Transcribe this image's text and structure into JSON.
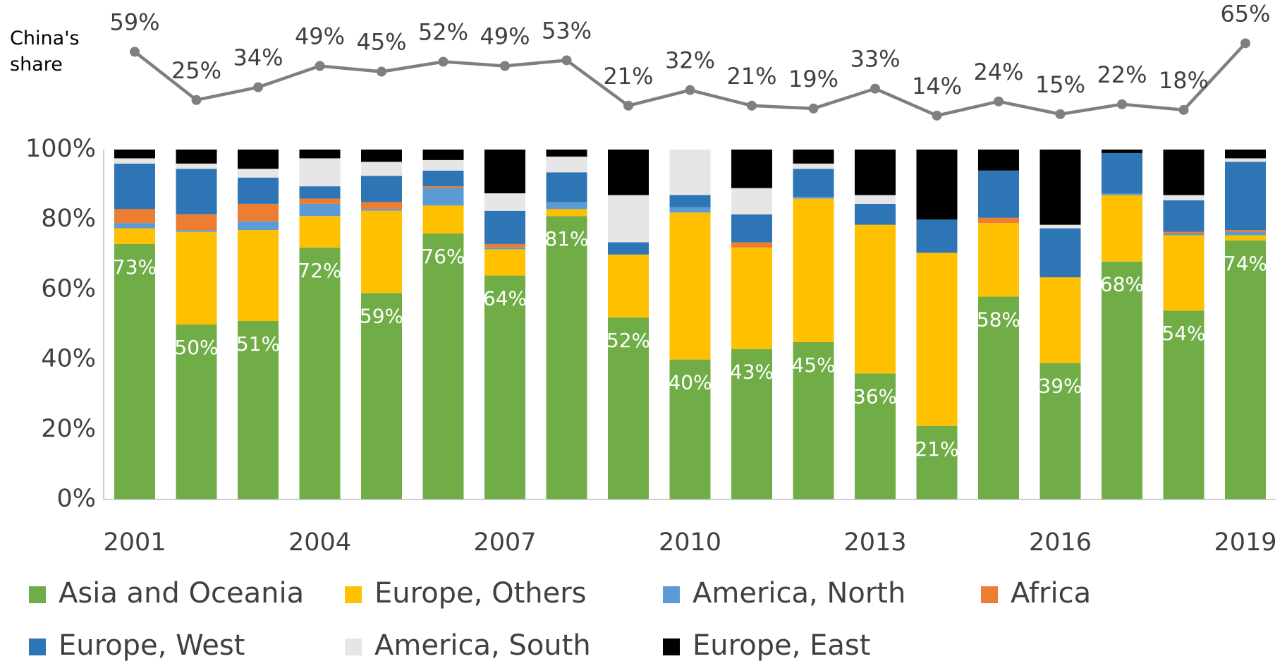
{
  "chart_data": {
    "type": "bar",
    "stacked": true,
    "annotation": "China's share",
    "categories": [
      "2001",
      null,
      null,
      "2004",
      null,
      null,
      "2007",
      null,
      null,
      "2010",
      null,
      null,
      "2013",
      null,
      null,
      "2016",
      null,
      null,
      "2019"
    ],
    "ylim": [
      0,
      100
    ],
    "yticks": [
      {
        "value": 0,
        "label": "0%"
      },
      {
        "value": 20,
        "label": "20%"
      },
      {
        "value": 40,
        "label": "40%"
      },
      {
        "value": 60,
        "label": "60%"
      },
      {
        "value": 80,
        "label": "80%"
      },
      {
        "value": 100,
        "label": "100%"
      }
    ],
    "y2lim": [
      0,
      100
    ],
    "grid": false,
    "legend": "bottom",
    "series": [
      {
        "name": "Asia and Oceania",
        "color": "#70ad47",
        "values": [
          73,
          50,
          51,
          72,
          59,
          76,
          64,
          81,
          52,
          40,
          43,
          45,
          36,
          21,
          58,
          39,
          68,
          54,
          74
        ],
        "value_labels": [
          "73%",
          "50%",
          "51%",
          "72%",
          "59%",
          "76%",
          "64%",
          "81%",
          "52%",
          "40%",
          "43%",
          "45%",
          "36%",
          "21%",
          "58%",
          "39%",
          "68%",
          "54%",
          "74%"
        ]
      },
      {
        "name": "Europe, Others",
        "color": "#ffc000",
        "values": [
          4.5,
          26.5,
          26,
          9,
          23.5,
          8,
          7.5,
          2,
          18,
          42,
          29,
          41,
          42.5,
          49.5,
          21,
          24.5,
          19,
          21.5,
          1.5
        ]
      },
      {
        "name": "America, North",
        "color": "#5b9bd5",
        "values": [
          1.5,
          0.5,
          2.5,
          3.5,
          0.5,
          5,
          0.5,
          2,
          0,
          1.5,
          0,
          0.5,
          0,
          0,
          0,
          0,
          0.5,
          0.5,
          1
        ]
      },
      {
        "name": "Africa",
        "color": "#ed7d31",
        "values": [
          4,
          4.5,
          5,
          1.5,
          2,
          0.5,
          1,
          0,
          0,
          0,
          1.5,
          0,
          0,
          0,
          1.5,
          0,
          0,
          0.5,
          0.5
        ]
      },
      {
        "name": "Europe, West",
        "color": "#2e75b6",
        "values": [
          13,
          13,
          7.5,
          3.5,
          7.5,
          4.5,
          9.5,
          8.5,
          3.5,
          3.5,
          8,
          8,
          6,
          9.5,
          13.5,
          14,
          11.5,
          9,
          19.5
        ]
      },
      {
        "name": "America, South",
        "color": "#e7e6e6",
        "values": [
          1.5,
          1.5,
          2.5,
          8,
          4,
          3,
          5,
          4.5,
          13.5,
          13,
          7.5,
          1.5,
          2.5,
          0,
          0,
          1,
          0,
          1.5,
          1
        ]
      },
      {
        "name": "Europe, East",
        "color": "#000000",
        "values": [
          2.5,
          4,
          5.5,
          2.5,
          3.5,
          3,
          12.5,
          2,
          13,
          0,
          11,
          4,
          13,
          20,
          6,
          21.5,
          1,
          13,
          2.5
        ]
      },
      {
        "type": "line",
        "axis": "y2",
        "color": "#7f7f7f",
        "values": [
          59,
          25,
          34,
          49,
          45,
          52,
          49,
          53,
          21,
          32,
          21,
          19,
          33,
          14,
          24,
          15,
          22,
          18,
          65
        ],
        "value_labels": [
          "59%",
          "25%",
          "34%",
          "49%",
          "45%",
          "52%",
          "49%",
          "53%",
          "21%",
          "32%",
          "21%",
          "19%",
          "33%",
          "14%",
          "24%",
          "15%",
          "22%",
          "18%",
          "65%"
        ]
      }
    ]
  }
}
